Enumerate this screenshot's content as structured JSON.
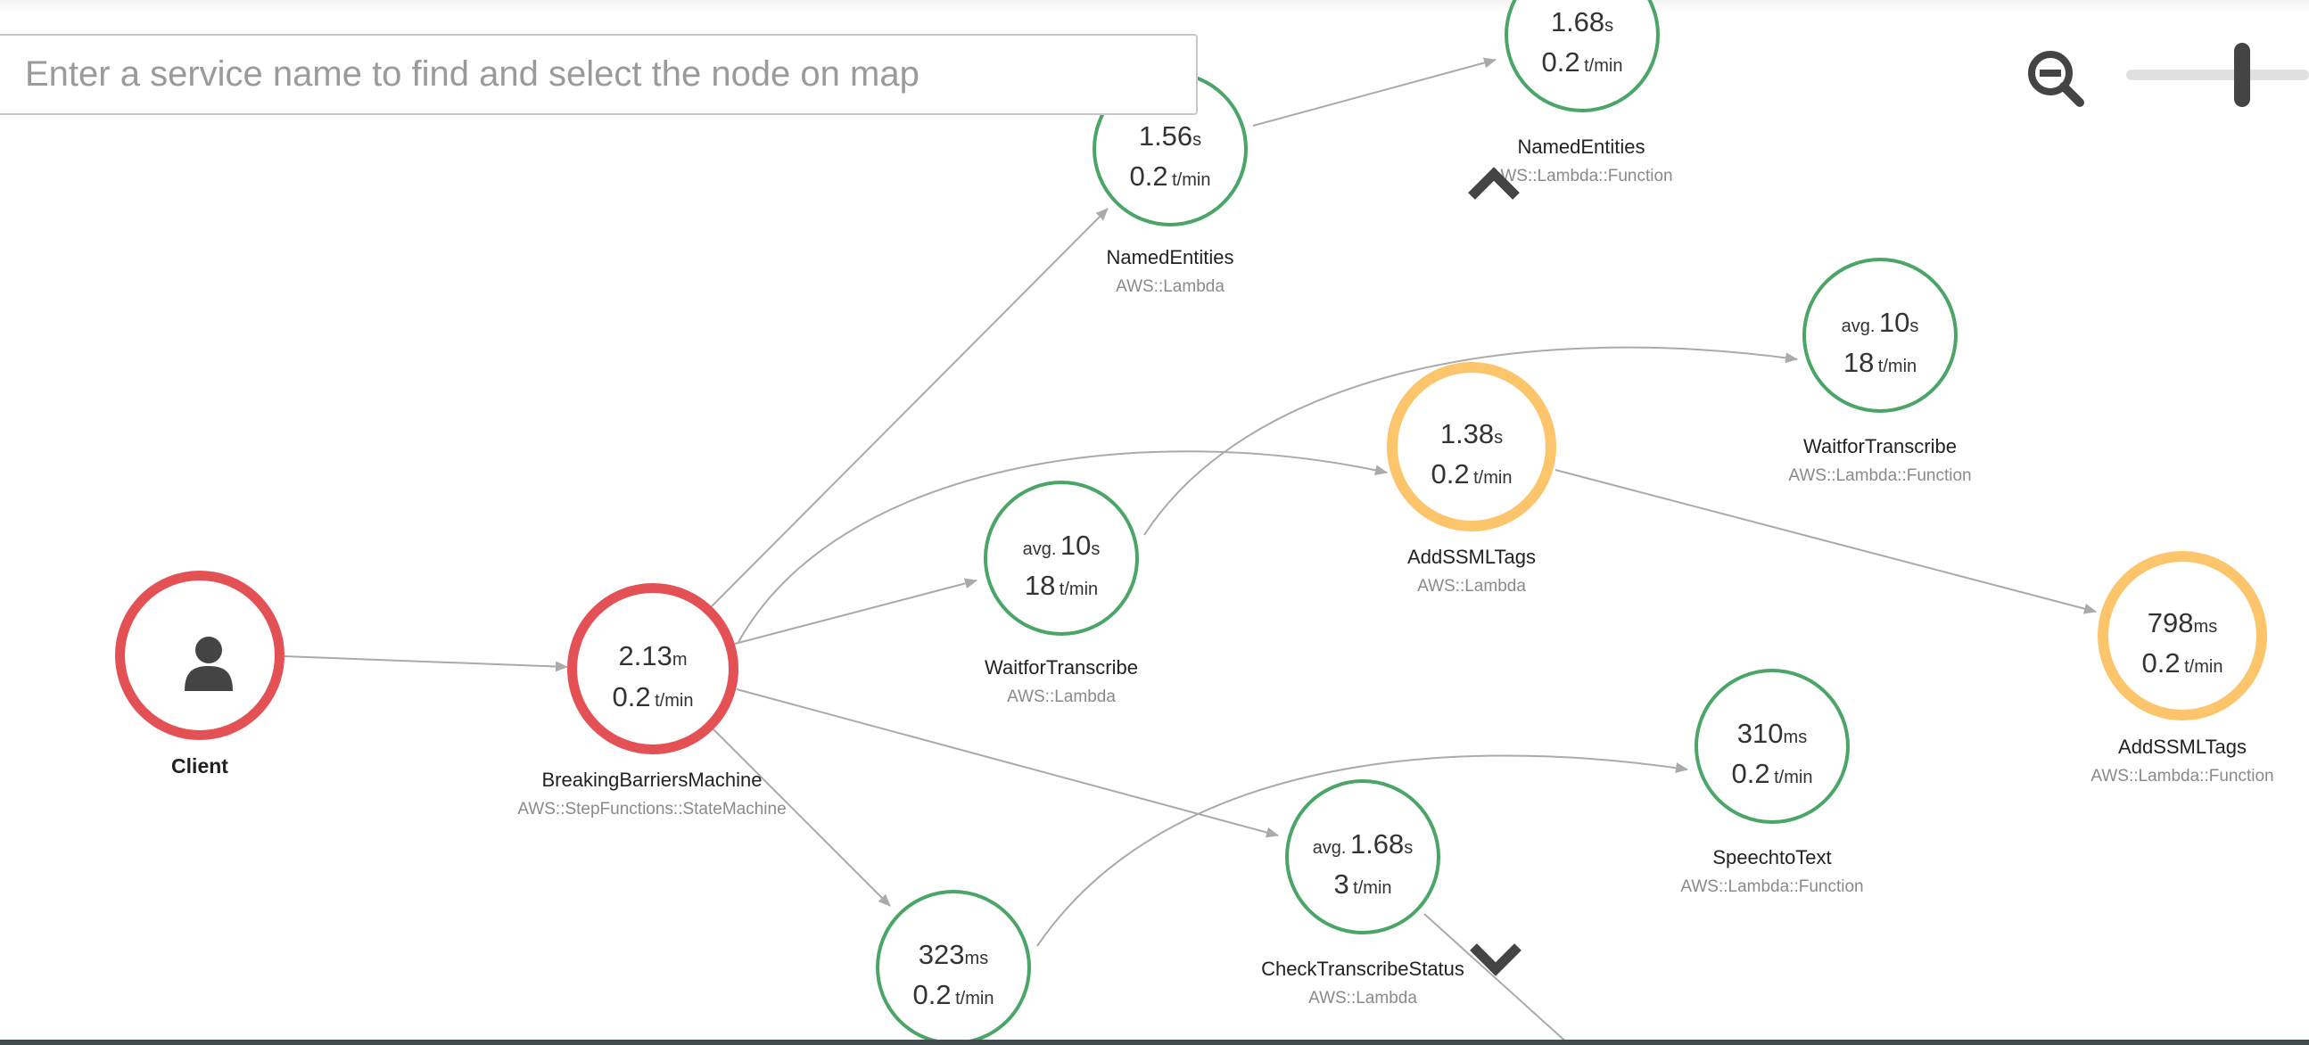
{
  "search": {
    "placeholder": "Enter a service name to find and select the node on map"
  },
  "colors": {
    "error": "#e35155",
    "fault": "#fdc56b",
    "ok": "#4aa567",
    "edge": "#aaaaaa",
    "text_secondary": "#8a8a8a",
    "icon": "#444444"
  },
  "controls": {
    "zoom_icon": "zoom-out-icon",
    "scroll_up_icon": "chevron-up-icon",
    "scroll_down_icon": "chevron-down-icon",
    "client_icon": "user-icon"
  },
  "nodes": {
    "client": {
      "status": "error",
      "name": "Client",
      "type": ""
    },
    "breaking_barriers": {
      "status": "error",
      "value": "2.13",
      "unit": "m",
      "rate": "0.2",
      "rate_unit": "t/min",
      "name": "BreakingBarriersMachine",
      "type": "AWS::StepFunctions::StateMachine"
    },
    "named_entities_lambda": {
      "status": "ok",
      "value": "1.56",
      "unit": "s",
      "rate": "0.2",
      "rate_unit": "t/min",
      "name": "NamedEntities",
      "type": "AWS::Lambda"
    },
    "named_entities_function": {
      "status": "ok",
      "value": "1.68",
      "unit": "s",
      "rate": "0.2",
      "rate_unit": "t/min",
      "name": "NamedEntities",
      "type": "AWS::Lambda::Function"
    },
    "wait_transcribe_lambda": {
      "status": "ok",
      "prefix": "avg.",
      "value": "10",
      "unit": "s",
      "rate": "18",
      "rate_unit": "t/min",
      "name": "WaitforTranscribe",
      "type": "AWS::Lambda"
    },
    "wait_transcribe_function": {
      "status": "ok",
      "prefix": "avg.",
      "value": "10",
      "unit": "s",
      "rate": "18",
      "rate_unit": "t/min",
      "name": "WaitforTranscribe",
      "type": "AWS::Lambda::Function"
    },
    "add_ssml_lambda": {
      "status": "fault",
      "value": "1.38",
      "unit": "s",
      "rate": "0.2",
      "rate_unit": "t/min",
      "name": "AddSSMLTags",
      "type": "AWS::Lambda"
    },
    "add_ssml_function": {
      "status": "fault",
      "value": "798",
      "unit": "ms",
      "rate": "0.2",
      "rate_unit": "t/min",
      "name": "AddSSMLTags",
      "type": "AWS::Lambda::Function"
    },
    "speech_to_text": {
      "status": "ok",
      "value": "310",
      "unit": "ms",
      "rate": "0.2",
      "rate_unit": "t/min",
      "name": "SpeechtoText",
      "type": "AWS::Lambda::Function"
    },
    "check_transcribe": {
      "status": "ok",
      "prefix": "avg.",
      "value": "1.68",
      "unit": "s",
      "rate": "3",
      "rate_unit": "t/min",
      "name": "CheckTranscribeStatus",
      "type": "AWS::Lambda"
    },
    "speech_lambda_bottom": {
      "status": "ok",
      "value": "323",
      "unit": "ms",
      "rate": "0.2",
      "rate_unit": "t/min",
      "name": "",
      "type": ""
    }
  },
  "edges": [
    [
      "client",
      "breaking_barriers"
    ],
    [
      "breaking_barriers",
      "named_entities_lambda"
    ],
    [
      "breaking_barriers",
      "wait_transcribe_lambda"
    ],
    [
      "breaking_barriers",
      "add_ssml_lambda"
    ],
    [
      "breaking_barriers",
      "check_transcribe"
    ],
    [
      "breaking_barriers",
      "speech_lambda_bottom"
    ],
    [
      "named_entities_lambda",
      "named_entities_function"
    ],
    [
      "wait_transcribe_lambda",
      "wait_transcribe_function"
    ],
    [
      "add_ssml_lambda",
      "add_ssml_function"
    ],
    [
      "speech_lambda_bottom",
      "speech_to_text"
    ],
    [
      "check_transcribe",
      "offscreen"
    ]
  ]
}
